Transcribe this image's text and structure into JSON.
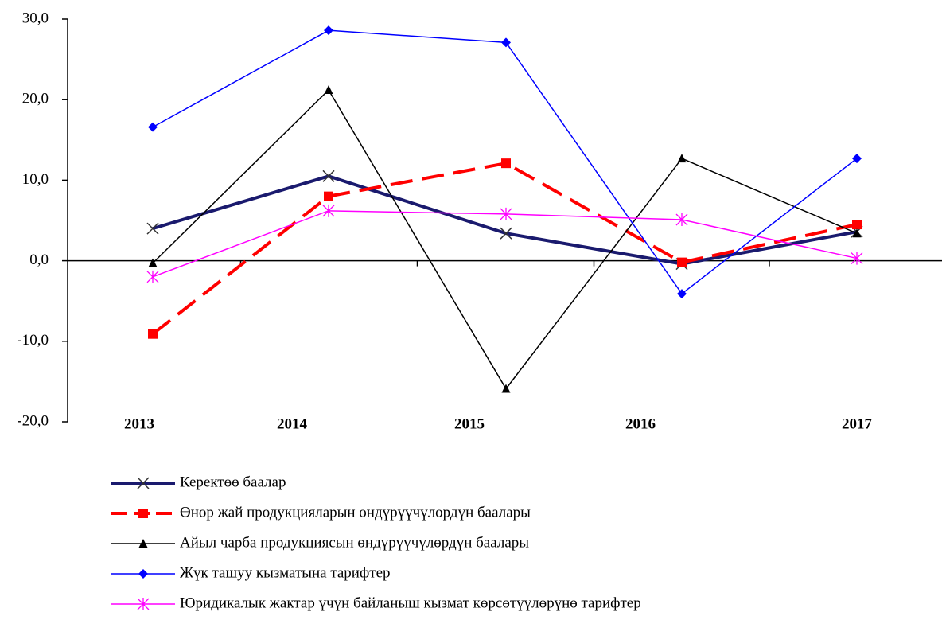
{
  "chart_data": {
    "type": "line",
    "categories": [
      "2013",
      "2014",
      "2015",
      "2016",
      "2017"
    ],
    "series": [
      {
        "name": "Керектөө баалар",
        "color": "#1a1a6e",
        "marker": "x",
        "dash": "solid",
        "width": 4,
        "values": [
          4.0,
          10.5,
          3.4,
          -0.4,
          3.6
        ]
      },
      {
        "name": "Өнөр жай продукцияларын өндүрүүчүлөрдүн баалары",
        "color": "#ff0000",
        "marker": "square",
        "dash": "dashed",
        "width": 4,
        "values": [
          -9.1,
          8.0,
          12.1,
          -0.2,
          4.5
        ]
      },
      {
        "name": "Айыл чарба продукциясын өндүрүүчүлөрдүн баалары",
        "color": "#000000",
        "marker": "triangle",
        "dash": "solid",
        "width": 1.5,
        "values": [
          -0.3,
          21.2,
          -15.9,
          12.7,
          3.4
        ]
      },
      {
        "name": "Жүк ташуу кызматына тарифтер",
        "color": "#0000ff",
        "marker": "diamond",
        "dash": "solid",
        "width": 1.5,
        "values": [
          16.6,
          28.6,
          27.1,
          -4.1,
          12.7
        ]
      },
      {
        "name": "Юридикалык жактар үчүн байланыш кызмат көрсөтүүлөрүнө тарифтер",
        "color": "#ff00ff",
        "marker": "asterisk",
        "dash": "solid",
        "width": 1.5,
        "values": [
          -2.0,
          6.2,
          5.8,
          5.1,
          0.3
        ]
      }
    ],
    "ylim": [
      -20,
      30
    ],
    "yticks": [
      {
        "value": -20,
        "label": "-20,0"
      },
      {
        "value": -10,
        "label": "-10,0"
      },
      {
        "value": 0,
        "label": "0,0"
      },
      {
        "value": 10,
        "label": "10,0"
      },
      {
        "value": 20,
        "label": "20,0"
      },
      {
        "value": 30,
        "label": "30,0"
      }
    ],
    "grid": false,
    "legend": "bottom"
  }
}
